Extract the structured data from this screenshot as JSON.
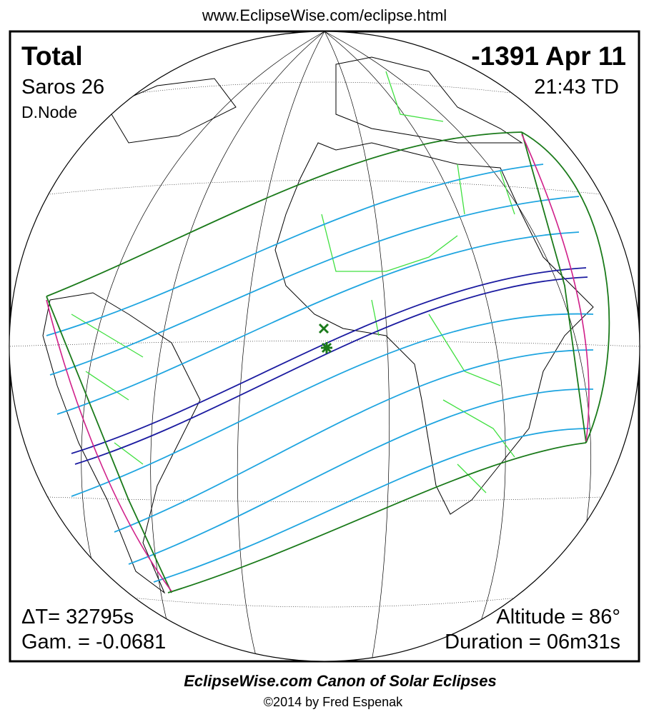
{
  "header": {
    "url": "www.EclipseWise.com/eclipse.html"
  },
  "panel": {
    "eclipse_type": "Total",
    "saros": "Saros  26",
    "node": "D.Node",
    "date": "-1391 Apr 11",
    "time": "21:43 TD",
    "delta_t": "ΔT=  32795s",
    "gamma": "Gam. = -0.0681",
    "altitude": "Altitude = 86°",
    "duration": "Duration = 06m31s"
  },
  "footer": {
    "title": "EclipseWise.com Canon of Solar Eclipses",
    "credit": "©2014 by Fred Espenak"
  }
}
